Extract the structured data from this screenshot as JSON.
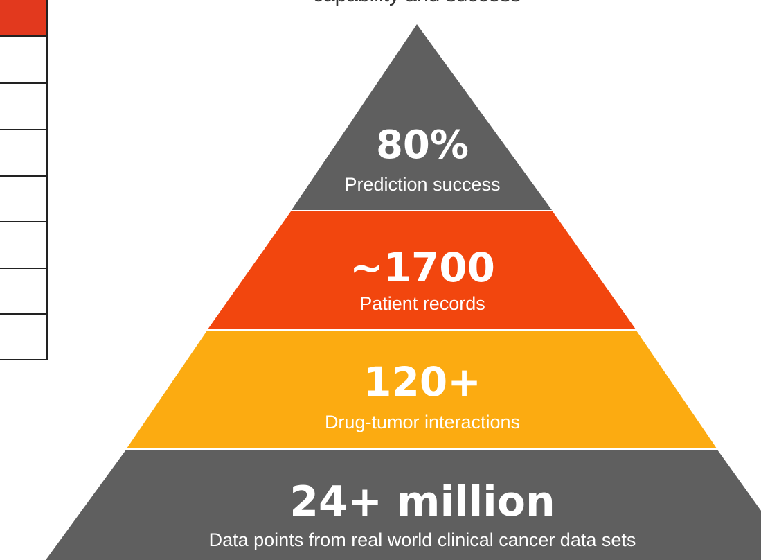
{
  "title": "capability and success",
  "tiers": [
    {
      "value": "80%",
      "label": "Prediction success"
    },
    {
      "value": "~1700",
      "label": "Patient records"
    },
    {
      "value": "120+",
      "label": "Drug-tumor interactions"
    },
    {
      "value": "24+ million",
      "label": "Data points from real world clinical cancer data sets"
    }
  ]
}
